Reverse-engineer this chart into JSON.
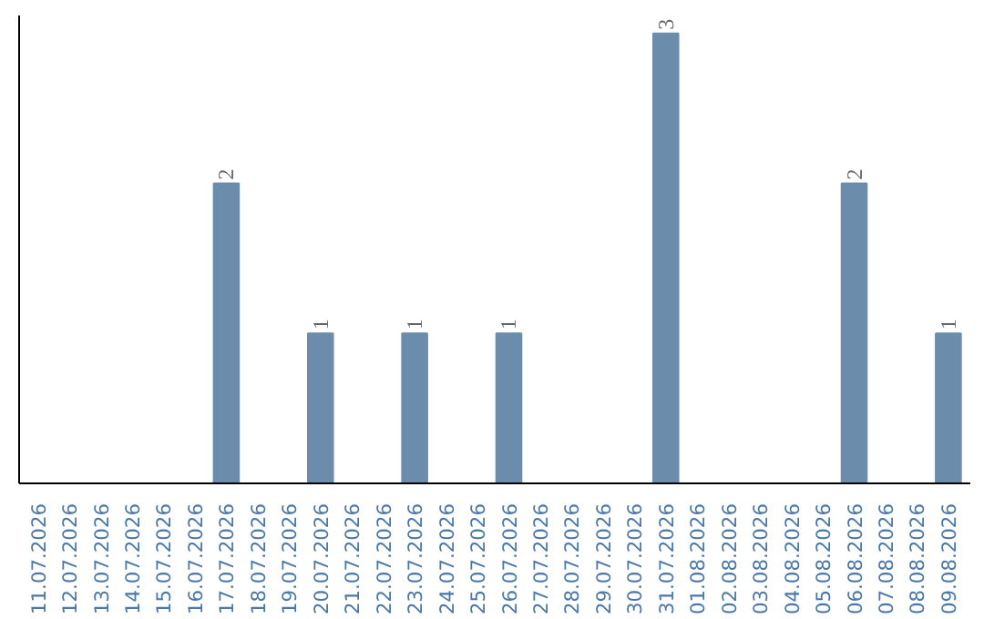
{
  "chart_data": {
    "type": "bar",
    "categories": [
      "11.07.2026",
      "12.07.2026",
      "13.07.2026",
      "14.07.2026",
      "15.07.2026",
      "16.07.2026",
      "17.07.2026",
      "18.07.2026",
      "19.07.2026",
      "20.07.2026",
      "21.07.2026",
      "22.07.2026",
      "23.07.2026",
      "24.07.2026",
      "25.07.2026",
      "26.07.2026",
      "27.07.2026",
      "28.07.2026",
      "29.07.2026",
      "30.07.2026",
      "31.07.2026",
      "01.08.2026",
      "02.08.2026",
      "03.08.2026",
      "04.08.2026",
      "05.08.2026",
      "06.08.2026",
      "07.08.2026",
      "08.08.2026",
      "09.08.2026"
    ],
    "values": [
      0,
      0,
      0,
      0,
      0,
      0,
      2,
      0,
      0,
      1,
      0,
      0,
      1,
      0,
      0,
      1,
      0,
      0,
      0,
      0,
      3,
      0,
      0,
      0,
      0,
      0,
      2,
      0,
      0,
      1
    ],
    "value_labels": [
      null,
      null,
      null,
      null,
      null,
      null,
      "2",
      null,
      null,
      "1",
      null,
      null,
      "1",
      null,
      null,
      "1",
      null,
      null,
      null,
      null,
      "3",
      null,
      null,
      null,
      null,
      null,
      "2",
      null,
      null,
      "1"
    ],
    "color": "#6b8cab"
  }
}
